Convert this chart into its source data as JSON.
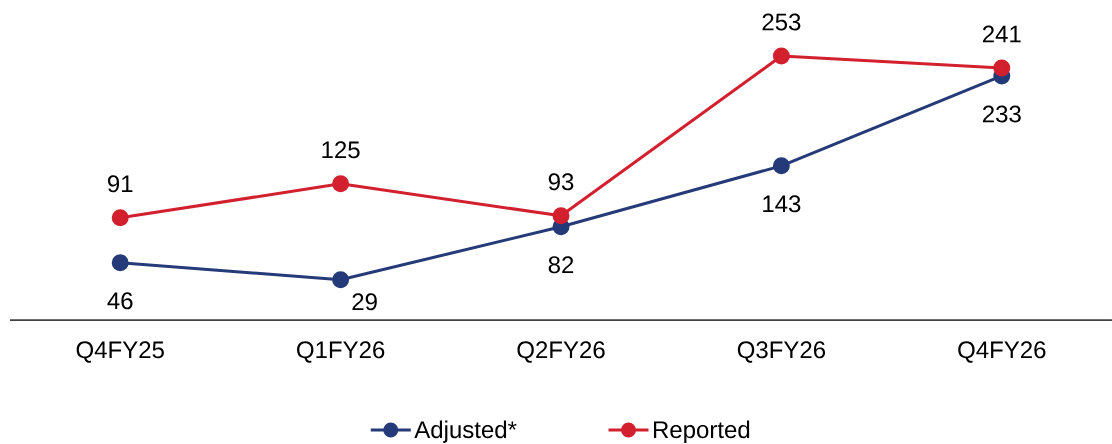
{
  "chart_data": {
    "type": "line",
    "categories": [
      "Q4FY25",
      "Q1FY26",
      "Q2FY26",
      "Q3FY26",
      "Q4FY26"
    ],
    "series": [
      {
        "name": "Adjusted*",
        "color": "#253A78",
        "values": [
          46,
          29,
          82,
          143,
          233
        ]
      },
      {
        "name": "Reported",
        "color": "#D2202E",
        "values": [
          91,
          125,
          93,
          253,
          241
        ]
      }
    ],
    "data_labels": true,
    "legend": "bottom",
    "marker": "circle",
    "line_style": "solid",
    "tick_labels": "x"
  }
}
